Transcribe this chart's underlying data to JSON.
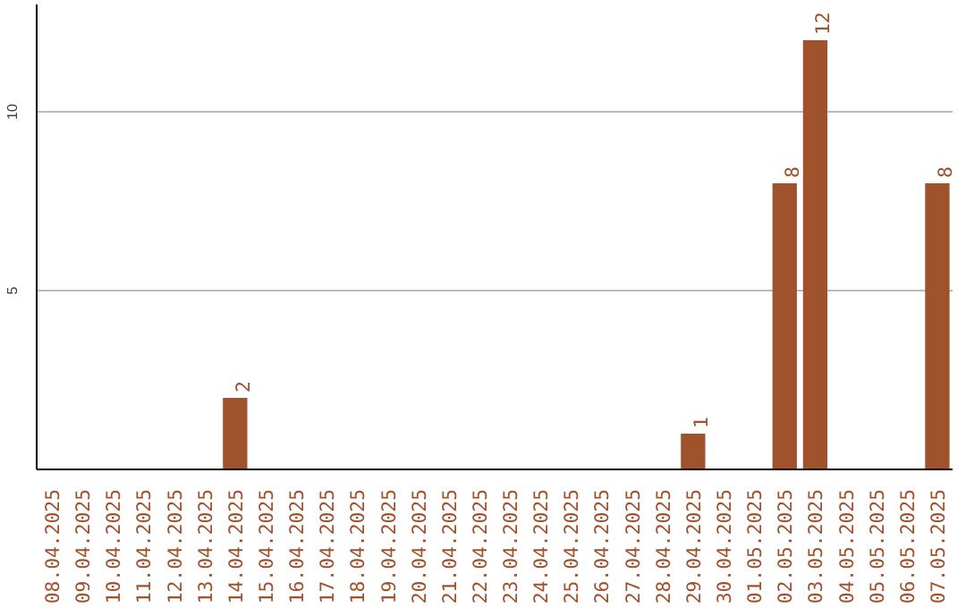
{
  "chart_data": {
    "type": "bar",
    "categories": [
      "08.04.2025",
      "09.04.2025",
      "10.04.2025",
      "11.04.2025",
      "12.04.2025",
      "13.04.2025",
      "14.04.2025",
      "15.04.2025",
      "16.04.2025",
      "17.04.2025",
      "18.04.2025",
      "19.04.2025",
      "20.04.2025",
      "21.04.2025",
      "22.04.2025",
      "23.04.2025",
      "24.04.2025",
      "25.04.2025",
      "26.04.2025",
      "27.04.2025",
      "28.04.2025",
      "29.04.2025",
      "30.04.2025",
      "01.05.2025",
      "02.05.2025",
      "03.05.2025",
      "04.05.2025",
      "05.05.2025",
      "06.05.2025",
      "07.05.2025"
    ],
    "values": [
      0,
      0,
      0,
      0,
      0,
      0,
      2,
      0,
      0,
      0,
      0,
      0,
      0,
      0,
      0,
      0,
      0,
      0,
      0,
      0,
      0,
      1,
      0,
      0,
      8,
      12,
      0,
      0,
      0,
      8
    ],
    "value_labels": [
      null,
      null,
      null,
      null,
      null,
      null,
      "2",
      null,
      null,
      null,
      null,
      null,
      null,
      null,
      null,
      null,
      null,
      null,
      null,
      null,
      null,
      "1",
      null,
      null,
      "8",
      "12",
      null,
      null,
      null,
      "8"
    ],
    "color": "#a0522d",
    "ylim": [
      0,
      13
    ],
    "yticks": [
      5,
      10
    ],
    "grid": "y"
  }
}
